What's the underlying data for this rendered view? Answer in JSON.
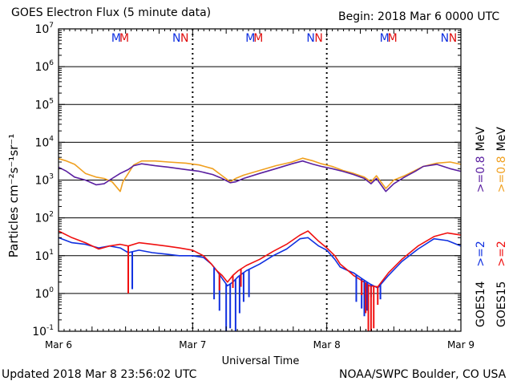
{
  "header": {
    "title": "GOES Electron Flux (5 minute data)",
    "begin": "Begin: 2018 Mar 6 0000 UTC"
  },
  "footer": {
    "updated": "Updated 2018 Mar  8 23:56:02 UTC",
    "credit": "NOAA/SWPC Boulder, CO USA"
  },
  "colors": {
    "goes14_high": "#5a1fa0",
    "goes15_high": "#f0a020",
    "goes14_low": "#1030e0",
    "goes15_low": "#f01010",
    "magnetopause_m14": "#1030e0",
    "magnetopause_m15": "#e01010"
  },
  "chart_data": {
    "type": "line",
    "title": "GOES Electron Flux (5 minute data)",
    "xlabel": "Universal Time",
    "ylabel": "Particles cm⁻²s⁻¹sr⁻¹",
    "yscale": "log",
    "ylim": [
      0.1,
      10000000
    ],
    "xlim_days": [
      0,
      3
    ],
    "x_tick_labels": [
      "Mar 6",
      "Mar 7",
      "Mar 8",
      "Mar 9"
    ],
    "y_tick_labels": [
      {
        "base": "10",
        "exp": "-1"
      },
      {
        "base": "10",
        "exp": "0"
      },
      {
        "base": "10",
        "exp": "1"
      },
      {
        "base": "10",
        "exp": "2"
      },
      {
        "base": "10",
        "exp": "3"
      },
      {
        "base": "10",
        "exp": "4"
      },
      {
        "base": "10",
        "exp": "5"
      },
      {
        "base": "10",
        "exp": "6"
      },
      {
        "base": "10",
        "exp": "7"
      }
    ],
    "threshold_line": 1000,
    "grid": true,
    "markers": {
      "M": "M",
      "N": "N",
      "day_groups": [
        {
          "m_x": [
            0.43,
            0.49
          ],
          "n_x": [
            0.88,
            0.94
          ]
        },
        {
          "m_x": [
            1.43,
            1.49
          ],
          "n_x": [
            1.88,
            1.94
          ]
        },
        {
          "m_x": [
            2.43,
            2.49
          ],
          "n_x": [
            2.88,
            2.94
          ]
        }
      ]
    },
    "legend": [
      {
        "sat": "GOES14",
        "low": ">=2",
        "high": ">=0.8",
        "unit": "MeV"
      },
      {
        "sat": "GOES15",
        "low": ">=2",
        "high": ">=0.8",
        "unit": "MeV"
      }
    ],
    "series": [
      {
        "name": "GOES15 >=0.8 MeV",
        "color_key": "goes15_high",
        "x": [
          0,
          0.06,
          0.12,
          0.2,
          0.28,
          0.34,
          0.4,
          0.46,
          0.48,
          0.53,
          0.56,
          0.62,
          0.72,
          0.82,
          0.95,
          1.05,
          1.15,
          1.22,
          1.28,
          1.32,
          1.38,
          1.5,
          1.62,
          1.74,
          1.82,
          1.9,
          1.96,
          2.04,
          2.12,
          2.2,
          2.28,
          2.33,
          2.37,
          2.44,
          2.5,
          2.58,
          2.66,
          2.72,
          2.82,
          2.92,
          3.0
        ],
        "y": [
          3700,
          3200,
          2600,
          1500,
          1200,
          1100,
          900,
          500,
          900,
          1700,
          2500,
          3200,
          3200,
          3000,
          2800,
          2500,
          2000,
          1300,
          900,
          1100,
          1350,
          1800,
          2400,
          3000,
          3800,
          3200,
          2700,
          2300,
          1800,
          1500,
          1200,
          900,
          1300,
          600,
          1000,
          1300,
          1800,
          2300,
          2800,
          3000,
          2600
        ]
      },
      {
        "name": "GOES14 >=0.8 MeV",
        "color_key": "goes14_high",
        "x": [
          0,
          0.06,
          0.12,
          0.2,
          0.28,
          0.34,
          0.4,
          0.46,
          0.52,
          0.56,
          0.62,
          0.72,
          0.82,
          0.95,
          1.05,
          1.15,
          1.22,
          1.28,
          1.32,
          1.38,
          1.5,
          1.62,
          1.74,
          1.82,
          1.9,
          1.96,
          2.04,
          2.12,
          2.2,
          2.28,
          2.33,
          2.37,
          2.44,
          2.5,
          2.58,
          2.66,
          2.72,
          2.82,
          2.92,
          3.0
        ],
        "y": [
          2200,
          1700,
          1200,
          1000,
          750,
          800,
          1100,
          1500,
          1900,
          2400,
          2700,
          2400,
          2200,
          1900,
          1700,
          1400,
          1100,
          850,
          900,
          1100,
          1500,
          2000,
          2700,
          3200,
          2600,
          2300,
          2000,
          1700,
          1400,
          1100,
          800,
          1100,
          500,
          800,
          1200,
          1700,
          2300,
          2600,
          2000,
          1700
        ]
      },
      {
        "name": "GOES14 >=2 MeV",
        "color_key": "goes14_low",
        "x": [
          0,
          0.1,
          0.2,
          0.3,
          0.38,
          0.46,
          0.52,
          0.6,
          0.7,
          0.8,
          0.9,
          1.0,
          1.08,
          1.14,
          1.18,
          1.22,
          1.26,
          1.3,
          1.34,
          1.4,
          1.5,
          1.6,
          1.7,
          1.8,
          1.86,
          1.94,
          2.0,
          2.06,
          2.1,
          2.16,
          2.2,
          2.26,
          2.32,
          2.38,
          2.46,
          2.56,
          2.68,
          2.8,
          2.9,
          3.0
        ],
        "y": [
          30,
          22,
          20,
          16,
          18,
          16,
          12,
          14,
          12,
          11,
          10,
          10,
          9,
          6,
          4,
          2.5,
          1.6,
          2,
          2.8,
          4,
          6,
          10,
          15,
          28,
          30,
          18,
          14,
          8,
          5,
          4,
          3.5,
          2.5,
          1.8,
          1.4,
          3,
          7,
          15,
          28,
          25,
          18
        ]
      },
      {
        "name": "GOES15 >=2 MeV",
        "color_key": "goes15_low",
        "x": [
          0,
          0.1,
          0.2,
          0.3,
          0.38,
          0.46,
          0.52,
          0.6,
          0.7,
          0.8,
          0.9,
          1.0,
          1.08,
          1.14,
          1.18,
          1.22,
          1.26,
          1.3,
          1.34,
          1.4,
          1.5,
          1.6,
          1.7,
          1.8,
          1.86,
          1.94,
          2.0,
          2.06,
          2.1,
          2.16,
          2.2,
          2.26,
          2.32,
          2.38,
          2.46,
          2.56,
          2.68,
          2.8,
          2.9,
          3.0
        ],
        "y": [
          45,
          30,
          22,
          15,
          18,
          20,
          18,
          22,
          20,
          18,
          16,
          14,
          10,
          6,
          4,
          3,
          2,
          3,
          4,
          5.5,
          8,
          13,
          20,
          35,
          45,
          24,
          16,
          10,
          6,
          4,
          3,
          2.2,
          1.6,
          1.5,
          3.5,
          8,
          18,
          32,
          40,
          35
        ]
      }
    ],
    "dropouts": [
      {
        "series": "GOES14 >=2 MeV",
        "x": [
          0.55,
          1.16,
          1.2,
          1.25,
          1.28,
          1.32,
          1.35,
          1.38,
          1.42,
          2.22,
          2.26,
          2.28,
          2.3,
          2.33,
          2.4
        ],
        "y": [
          1.3,
          0.7,
          0.35,
          0.1,
          0.12,
          0.1,
          0.3,
          0.6,
          0.8,
          0.6,
          0.4,
          0.25,
          0.35,
          0.8,
          0.7
        ]
      },
      {
        "series": "GOES15 >=2 MeV",
        "x": [
          0.52,
          1.2,
          1.3,
          1.36,
          2.26,
          2.29,
          2.31,
          2.33,
          2.35,
          2.38
        ],
        "y": [
          1,
          1.2,
          1.4,
          1.5,
          0.9,
          0.3,
          0.1,
          0.1,
          0.12,
          0.5
        ]
      }
    ]
  }
}
